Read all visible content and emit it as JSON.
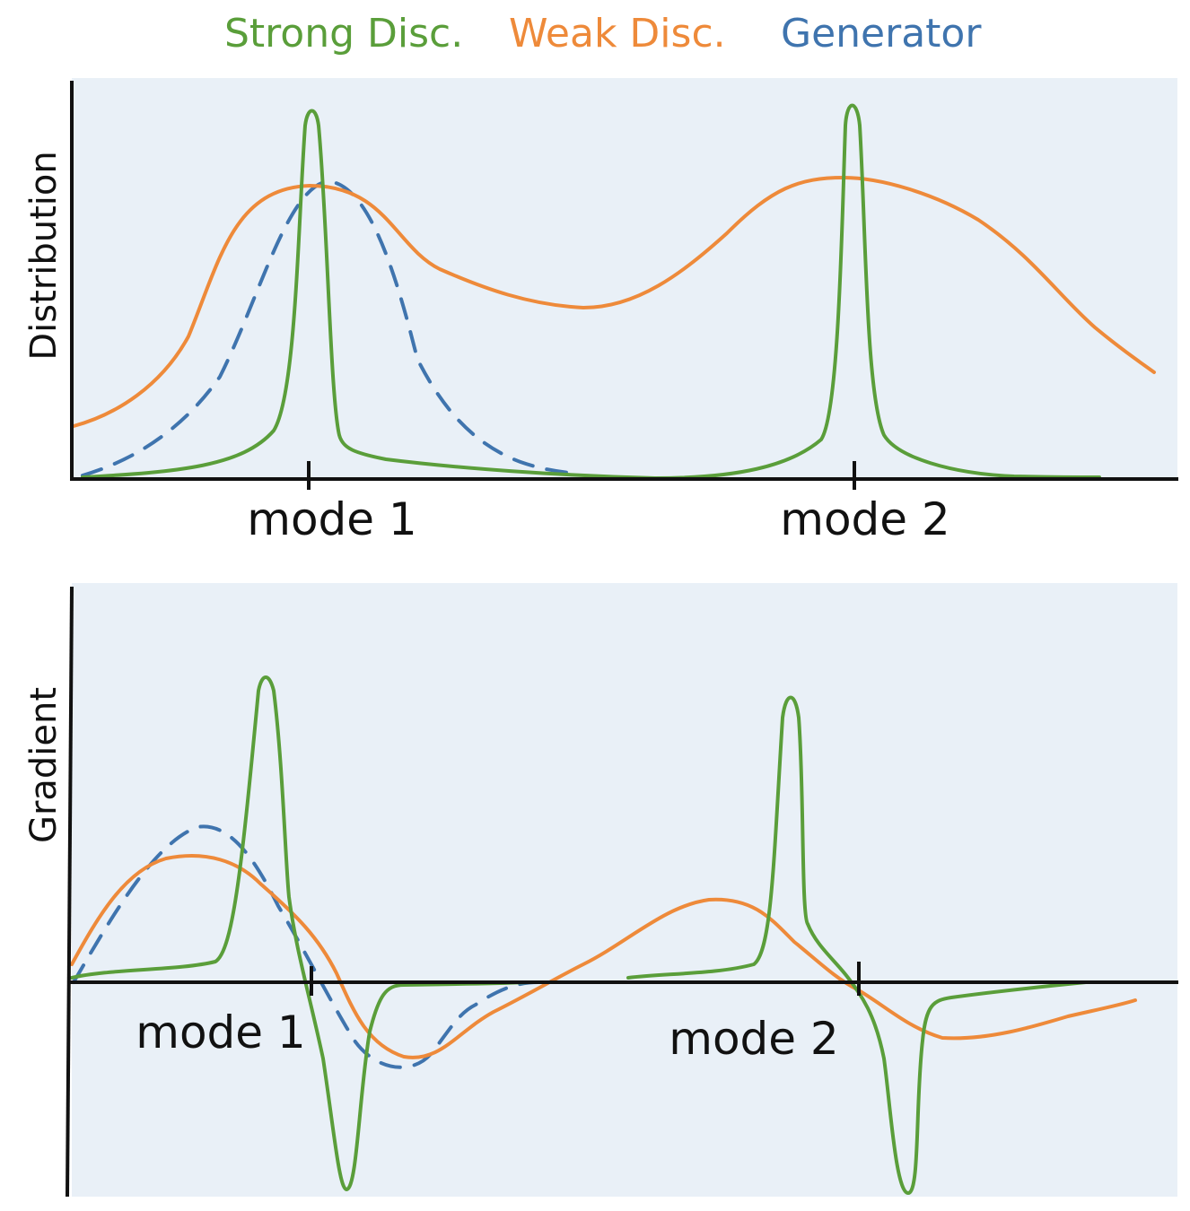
{
  "legend": {
    "strong_disc": "Strong Disc.",
    "weak_disc": "Weak Disc.",
    "generator": "Generator"
  },
  "colors": {
    "strong_disc": "#5a9e3a",
    "weak_disc": "#ee8a3a",
    "generator": "#3f74ae",
    "panel_bg": "#e9f0f7"
  },
  "top_panel": {
    "ylabel": "Distribution",
    "mode1_label": "mode 1",
    "mode2_label": "mode 2"
  },
  "bottom_panel": {
    "ylabel": "Gradient",
    "mode1_label": "mode 1",
    "mode2_label": "mode 2"
  }
}
